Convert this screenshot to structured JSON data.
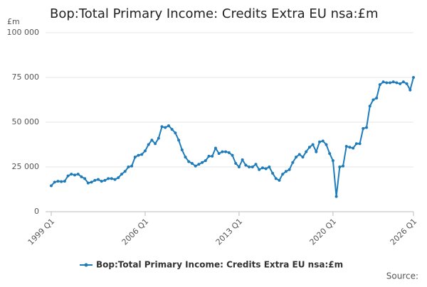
{
  "chart_data": {
    "type": "line",
    "title": "Bop:Total Primary Income: Credits Extra EU nsa:£m",
    "y_unit": "£m",
    "source": "Source:",
    "categories": [
      "1999 Q1",
      null,
      null,
      null,
      null,
      null,
      null,
      null,
      null,
      null,
      null,
      null,
      null,
      null,
      null,
      null,
      null,
      null,
      null,
      null,
      null,
      null,
      null,
      null,
      null,
      null,
      null,
      null,
      "2006 Q1",
      null,
      null,
      null,
      null,
      null,
      null,
      null,
      null,
      null,
      null,
      null,
      null,
      null,
      null,
      null,
      null,
      null,
      null,
      null,
      null,
      null,
      null,
      null,
      null,
      null,
      null,
      null,
      "2013 Q1",
      null,
      null,
      null,
      null,
      null,
      null,
      null,
      null,
      null,
      null,
      null,
      null,
      null,
      null,
      null,
      null,
      null,
      null,
      null,
      null,
      null,
      null,
      null,
      null,
      null,
      null,
      null,
      "2020 Q1",
      null,
      null,
      null,
      null,
      null,
      null,
      null,
      null,
      null,
      null,
      null,
      null,
      null,
      null,
      null,
      null,
      null,
      null,
      null,
      null,
      null,
      null,
      null,
      "2026 Q1"
    ],
    "series": [
      {
        "name": "Bop:Total Primary Income: Credits Extra EU nsa:£m",
        "color": "#1f7cba",
        "values": [
          14500,
          16500,
          17000,
          16800,
          17000,
          20000,
          21000,
          20500,
          21000,
          19500,
          18500,
          16000,
          16500,
          17500,
          18000,
          17000,
          17500,
          18500,
          18500,
          18000,
          19000,
          21000,
          22500,
          25000,
          25500,
          30500,
          31500,
          32000,
          34000,
          37500,
          40000,
          38000,
          41000,
          47500,
          47000,
          48000,
          46000,
          44000,
          40000,
          34500,
          30500,
          28000,
          27000,
          25500,
          26500,
          27500,
          28500,
          31000,
          31000,
          35500,
          32500,
          33500,
          33500,
          33000,
          31500,
          27000,
          25000,
          29000,
          26000,
          25000,
          25000,
          26500,
          23500,
          24500,
          24000,
          25000,
          21500,
          18500,
          17500,
          21000,
          22500,
          23500,
          27500,
          30500,
          32000,
          30500,
          33500,
          36000,
          37500,
          33500,
          39000,
          39500,
          37500,
          32500,
          28500,
          8500,
          25000,
          25500,
          36500,
          36000,
          35500,
          38000,
          38000,
          46500,
          47000,
          59000,
          62500,
          63500,
          71000,
          72500,
          72000,
          72000,
          72500,
          72000,
          71500,
          72500,
          71500,
          68000,
          75000
        ]
      }
    ],
    "ylim": [
      0,
      100000
    ],
    "yticks": [
      0,
      {
        "value": 25000,
        "label": "25 000"
      },
      {
        "value": 50000,
        "label": "50 000"
      },
      {
        "value": 75000,
        "label": "75 000"
      },
      {
        "value": 100000,
        "label": "100 000"
      }
    ],
    "grid": true
  }
}
